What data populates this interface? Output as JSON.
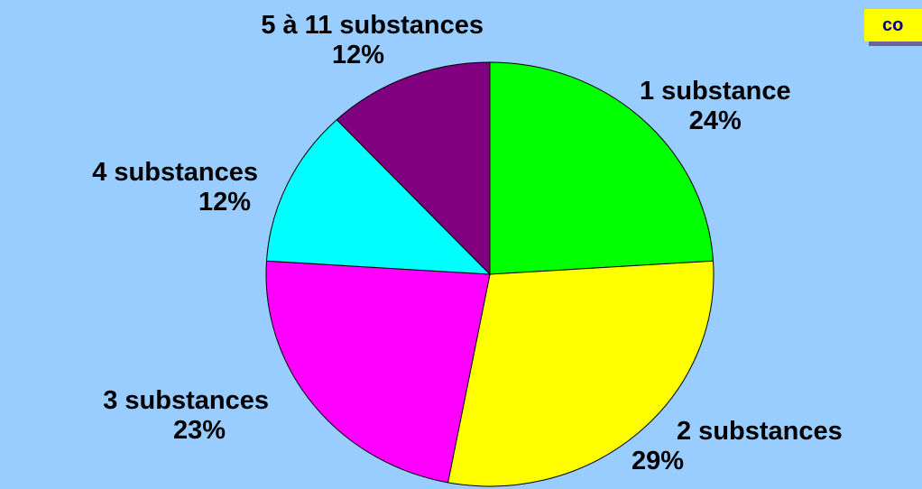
{
  "badge": {
    "text": "co"
  },
  "chart_data": {
    "type": "pie",
    "title": "",
    "slices": [
      {
        "label": "1 substance",
        "value": 24,
        "percent_label": "24%",
        "color": "#00ff00"
      },
      {
        "label": "2 substances",
        "value": 29,
        "percent_label": "29%",
        "color": "#ffff00"
      },
      {
        "label": "3 substances",
        "value": 23,
        "percent_label": "23%",
        "color": "#ff00ff"
      },
      {
        "label": "4 substances",
        "value": 12,
        "percent_label": "12%",
        "color": "#00ffff"
      },
      {
        "label": "5 à 11 substances",
        "value": 12,
        "percent_label": "12%",
        "color": "#800080"
      }
    ],
    "start_angle": "12 o'clock",
    "direction": "clockwise",
    "legend": "none",
    "background": "#99ccff"
  }
}
